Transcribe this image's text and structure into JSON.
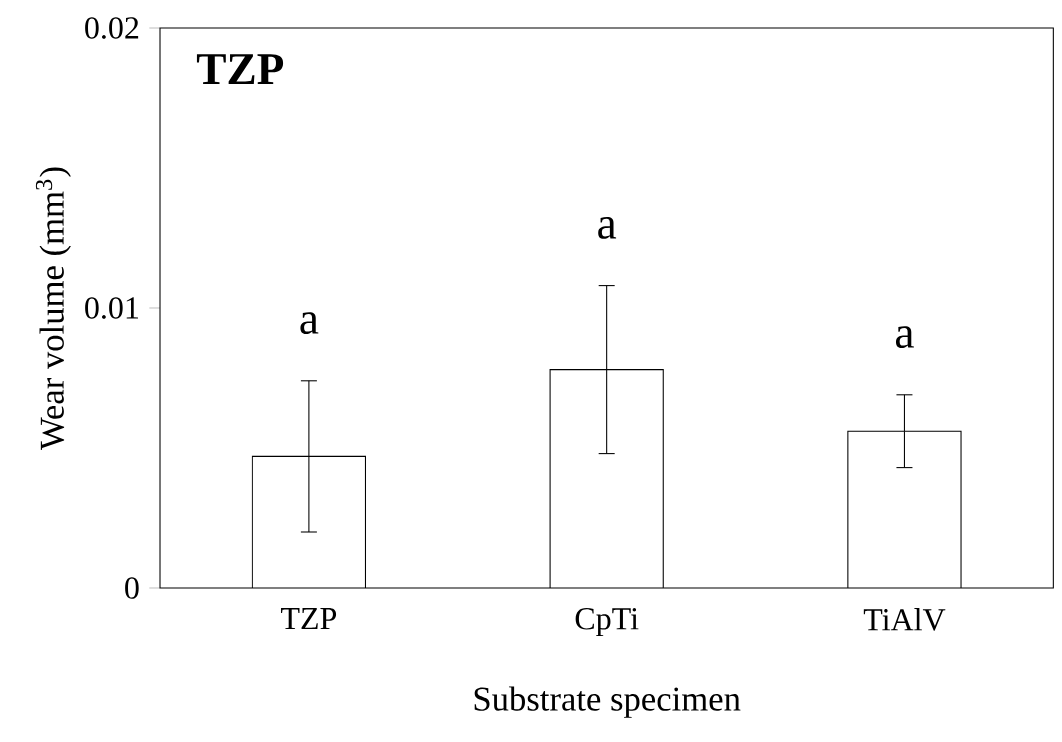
{
  "chart_data": {
    "type": "bar",
    "xlabel": "Substrate specimen",
    "ylabel": "Wear volume (mm$^{3}$)",
    "categories": [
      "TZP",
      "CpTi",
      "TiAlV"
    ],
    "values": [
      0.0047,
      0.0078,
      0.0056
    ],
    "errors": [
      0.0027,
      0.003,
      0.0013
    ],
    "color": "#ffffff",
    "ylim": [
      0,
      0.02
    ],
    "yticks": [
      0,
      0.01,
      0.02
    ],
    "annotations": [
      "TZP",
      "a",
      "a",
      "a"
    ]
  }
}
